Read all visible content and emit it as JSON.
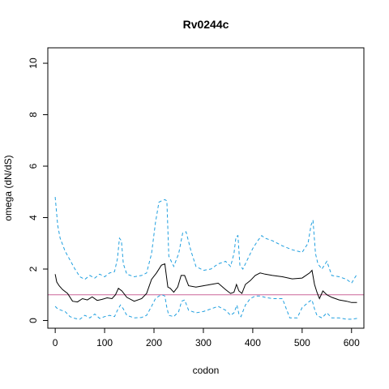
{
  "chart_data": {
    "type": "line",
    "title": "Rv0244c",
    "xlabel": "codon",
    "ylabel": "omega (dN/dS)",
    "xlim": [
      -15,
      625
    ],
    "ylim": [
      -0.3,
      10.6
    ],
    "xticks": [
      0,
      100,
      200,
      300,
      400,
      500,
      600
    ],
    "yticks": [
      0,
      2,
      4,
      6,
      8,
      10
    ],
    "reference_line": {
      "y": 1,
      "color": "#cc6699"
    },
    "grid": false,
    "legend": "none",
    "series": [
      {
        "role": "estimate",
        "color": "#000000",
        "style": "solid",
        "x": [
          0,
          3,
          8,
          15,
          25,
          35,
          45,
          55,
          65,
          75,
          85,
          95,
          105,
          115,
          122,
          128,
          135,
          145,
          160,
          175,
          185,
          195,
          205,
          215,
          222,
          228,
          233,
          240,
          248,
          255,
          262,
          270,
          285,
          300,
          315,
          330,
          345,
          355,
          362,
          367,
          372,
          378,
          385,
          395,
          405,
          415,
          425,
          440,
          460,
          480,
          500,
          515,
          520,
          525,
          530,
          535,
          542,
          550,
          560,
          575,
          590,
          600,
          611
        ],
        "y": [
          1.8,
          1.5,
          1.35,
          1.2,
          1.05,
          0.75,
          0.72,
          0.85,
          0.8,
          0.92,
          0.78,
          0.82,
          0.88,
          0.85,
          1.0,
          1.25,
          1.15,
          0.9,
          0.75,
          0.85,
          1.05,
          1.6,
          1.85,
          2.15,
          2.2,
          1.3,
          1.25,
          1.1,
          1.3,
          1.75,
          1.75,
          1.35,
          1.3,
          1.35,
          1.4,
          1.45,
          1.2,
          1.05,
          1.1,
          1.4,
          1.15,
          1.05,
          1.4,
          1.55,
          1.75,
          1.85,
          1.8,
          1.75,
          1.7,
          1.62,
          1.65,
          1.85,
          1.95,
          1.4,
          1.1,
          0.85,
          1.15,
          1.0,
          0.9,
          0.8,
          0.75,
          0.7,
          0.7
        ]
      },
      {
        "role": "upper bound",
        "color": "#1f9fdf",
        "style": "dashed",
        "x": [
          0,
          5,
          10,
          20,
          30,
          40,
          50,
          60,
          70,
          80,
          90,
          100,
          110,
          120,
          126,
          130,
          134,
          138,
          145,
          160,
          175,
          185,
          195,
          203,
          210,
          215,
          222,
          226,
          230,
          240,
          250,
          258,
          265,
          275,
          285,
          300,
          315,
          330,
          345,
          355,
          362,
          366,
          370,
          374,
          380,
          390,
          400,
          410,
          418,
          425,
          440,
          460,
          480,
          500,
          512,
          518,
          522,
          527,
          532,
          540,
          550,
          560,
          575,
          590,
          600,
          611
        ],
        "y": [
          4.8,
          3.7,
          3.2,
          2.7,
          2.35,
          2.0,
          1.7,
          1.6,
          1.75,
          1.65,
          1.8,
          1.7,
          1.85,
          1.9,
          2.4,
          3.2,
          3.1,
          2.2,
          1.8,
          1.7,
          1.75,
          1.85,
          2.6,
          3.8,
          4.6,
          4.65,
          4.7,
          4.65,
          2.5,
          2.1,
          2.6,
          3.4,
          3.45,
          2.7,
          2.1,
          1.95,
          2.0,
          2.2,
          2.3,
          2.1,
          2.6,
          3.25,
          3.3,
          2.15,
          2.0,
          2.4,
          2.8,
          3.1,
          3.3,
          3.2,
          3.1,
          2.9,
          2.75,
          2.65,
          3.0,
          3.7,
          3.9,
          2.6,
          2.2,
          2.0,
          2.3,
          1.75,
          1.7,
          1.6,
          1.45,
          1.8
        ]
      },
      {
        "role": "lower bound",
        "color": "#1f9fdf",
        "style": "dashed",
        "x": [
          0,
          5,
          12,
          20,
          30,
          40,
          50,
          60,
          70,
          80,
          90,
          100,
          110,
          120,
          126,
          132,
          138,
          145,
          160,
          175,
          185,
          195,
          203,
          210,
          216,
          222,
          226,
          230,
          240,
          250,
          256,
          262,
          270,
          285,
          300,
          315,
          330,
          345,
          355,
          362,
          368,
          372,
          376,
          385,
          395,
          405,
          415,
          425,
          440,
          460,
          475,
          490,
          500,
          515,
          520,
          525,
          530,
          540,
          550,
          560,
          575,
          590,
          600,
          611
        ],
        "y": [
          0.55,
          0.45,
          0.4,
          0.35,
          0.15,
          0.08,
          0.05,
          0.2,
          0.1,
          0.25,
          0.08,
          0.15,
          0.2,
          0.15,
          0.4,
          0.6,
          0.45,
          0.2,
          0.1,
          0.12,
          0.2,
          0.55,
          0.85,
          0.95,
          1.0,
          0.95,
          0.5,
          0.2,
          0.15,
          0.35,
          0.75,
          0.8,
          0.4,
          0.3,
          0.35,
          0.45,
          0.55,
          0.4,
          0.2,
          0.3,
          0.6,
          0.25,
          0.15,
          0.6,
          0.85,
          0.95,
          0.95,
          0.9,
          0.85,
          0.85,
          0.1,
          0.1,
          0.5,
          0.75,
          0.8,
          0.45,
          0.2,
          0.1,
          0.3,
          0.1,
          0.1,
          0.05,
          0.05,
          0.08
        ]
      }
    ]
  }
}
